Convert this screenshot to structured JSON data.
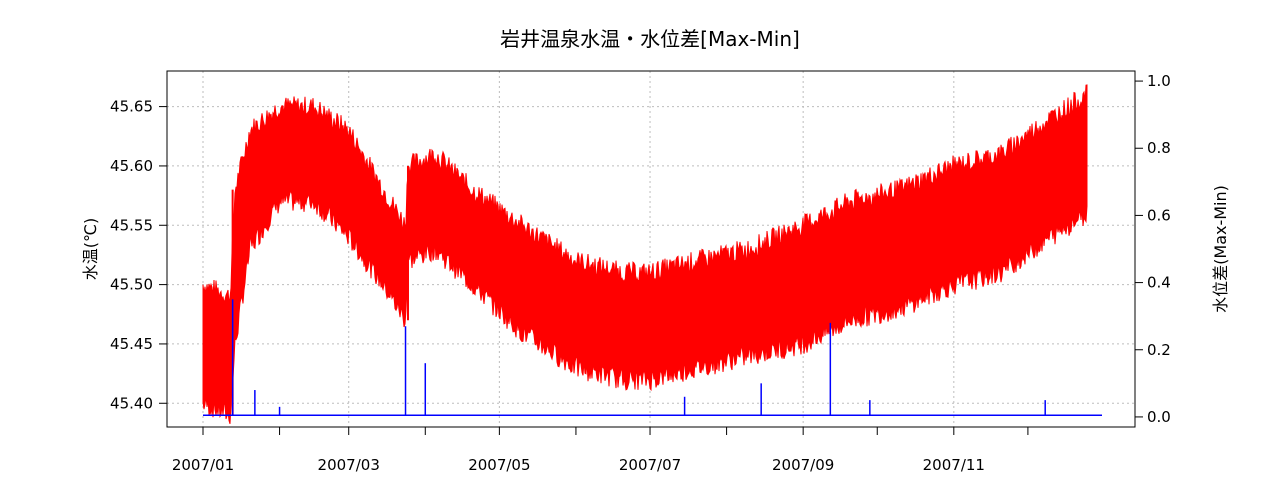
{
  "chart_data": {
    "type": "line",
    "title": "岩井温泉水温・水位差[Max-Min]",
    "ylabel_left": "水温(℃)",
    "ylabel_right": "水位差(Max-Min)",
    "x_tick_labels": [
      "2007/01",
      "2007/03",
      "2007/05",
      "2007/07",
      "2007/09",
      "2007/11"
    ],
    "y_left_ticks": [
      "45.40",
      "45.45",
      "45.50",
      "45.55",
      "45.60",
      "45.65"
    ],
    "y_right_ticks": [
      "0.0",
      "0.2",
      "0.4",
      "0.6",
      "0.8",
      "1.0"
    ],
    "ylim_left": [
      45.38,
      45.68
    ],
    "ylim_right": [
      -0.03,
      1.03
    ],
    "grid": true,
    "colors": {
      "temperature": "#ff0000",
      "water_level": "#0000ff"
    },
    "series": [
      {
        "axis": "left",
        "type": "band",
        "x": [
          "2007-01-01",
          "2007-01-12",
          "2007-01-14",
          "2007-01-20",
          "2007-02-01",
          "2007-02-15",
          "2007-03-01",
          "2007-03-15",
          "2007-03-24",
          "2007-03-25",
          "2007-04-05",
          "2007-04-20",
          "2007-05-10",
          "2007-06-01",
          "2007-06-20",
          "2007-07-01",
          "2007-07-20",
          "2007-08-10",
          "2007-09-01",
          "2007-09-20",
          "2007-10-10",
          "2007-11-01",
          "2007-11-20",
          "2007-12-10",
          "2007-12-25"
        ],
        "min": [
          45.4,
          45.39,
          45.45,
          45.53,
          45.57,
          45.57,
          45.54,
          45.5,
          45.47,
          45.52,
          45.53,
          45.5,
          45.46,
          45.43,
          45.42,
          45.42,
          45.43,
          45.44,
          45.45,
          45.47,
          45.48,
          45.5,
          45.51,
          45.54,
          45.56
        ],
        "max": [
          45.5,
          45.49,
          45.58,
          45.63,
          45.65,
          45.65,
          45.63,
          45.58,
          45.55,
          45.6,
          45.61,
          45.58,
          45.55,
          45.52,
          45.51,
          45.51,
          45.52,
          45.53,
          45.55,
          45.57,
          45.58,
          45.6,
          45.61,
          45.64,
          45.66
        ]
      },
      {
        "axis": "right",
        "type": "line",
        "baseline": 0.005,
        "spikes": [
          {
            "x": "2007-01-13",
            "y": 0.35
          },
          {
            "x": "2007-01-22",
            "y": 0.08
          },
          {
            "x": "2007-02-01",
            "y": 0.03
          },
          {
            "x": "2007-03-24",
            "y": 0.27
          },
          {
            "x": "2007-04-01",
            "y": 0.16
          },
          {
            "x": "2007-07-15",
            "y": 0.06
          },
          {
            "x": "2007-08-15",
            "y": 0.1
          },
          {
            "x": "2007-09-12",
            "y": 0.28
          },
          {
            "x": "2007-09-28",
            "y": 0.05
          },
          {
            "x": "2007-12-08",
            "y": 0.05
          }
        ]
      }
    ]
  }
}
